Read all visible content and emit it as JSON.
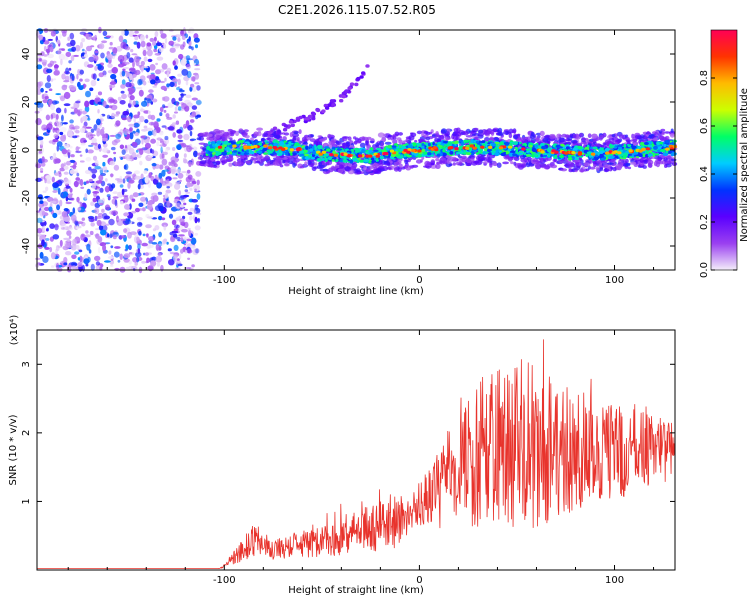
{
  "page": {
    "title": "C2E1.2026.115.07.52.R05"
  },
  "chart_data": [
    {
      "type": "heatmap",
      "name": "spectrogram",
      "xlabel": "Height of straight line (km)",
      "ylabel": "Frequency (Hz)",
      "xlim": [
        -196,
        131
      ],
      "ylim": [
        -50,
        50
      ],
      "xticks": [
        -100,
        0,
        100
      ],
      "xtick_labels": [
        "-100",
        "0",
        "100"
      ],
      "yticks": [
        -40,
        -20,
        0,
        20,
        40
      ],
      "ytick_labels": [
        "-40",
        "-20",
        "0",
        "20",
        "40"
      ],
      "noise_region_x": [
        -196,
        -113
      ],
      "signal_onset_x": -113,
      "signal_center_hz": 0,
      "signal_halfwidth_hz": 5,
      "harmonic_trace": {
        "x": [
          -75,
          -55,
          -40,
          -25
        ],
        "y": [
          8,
          14,
          22,
          35
        ]
      },
      "colorbar": {
        "label": "Normalized spectral amplitude",
        "range": [
          0,
          1
        ],
        "ticks": [
          0.0,
          0.2,
          0.4,
          0.6,
          0.8
        ],
        "tick_labels": [
          "0.0",
          "0.2",
          "0.4",
          "0.6",
          "0.8"
        ],
        "colors": [
          "#f4eefa",
          "#9a40f0",
          "#5a00ff",
          "#0033ff",
          "#00ccff",
          "#00ff66",
          "#ccff00",
          "#ffbb00",
          "#ff3300",
          "#ff0055"
        ]
      }
    },
    {
      "type": "line",
      "name": "snr",
      "xlabel": "Height of straight line (km)",
      "ylabel": "SNR (10 * v/v)",
      "y_multiplier": "(x10⁴)",
      "xlim": [
        -196,
        131
      ],
      "ylim": [
        0,
        3.5
      ],
      "xticks": [
        -100,
        0,
        100
      ],
      "xtick_labels": [
        "-100",
        "0",
        "100"
      ],
      "yticks": [
        1,
        2,
        3
      ],
      "ytick_labels": [
        "1",
        "2",
        "3"
      ],
      "color": "#e8332c",
      "envelope": {
        "x": [
          -196,
          -103,
          -100,
          -92,
          -85,
          -75,
          -60,
          -45,
          -30,
          -15,
          -5,
          0,
          10,
          20,
          30,
          40,
          50,
          60,
          70,
          80,
          90,
          100,
          110,
          120,
          131
        ],
        "mean": [
          0.02,
          0.02,
          0.05,
          0.25,
          0.45,
          0.3,
          0.38,
          0.45,
          0.55,
          0.65,
          0.85,
          0.95,
          1.2,
          1.6,
          1.7,
          1.8,
          1.85,
          1.8,
          1.75,
          1.75,
          1.7,
          1.7,
          1.75,
          1.75,
          1.75
        ],
        "amp": [
          0.0,
          0.0,
          0.02,
          0.15,
          0.25,
          0.15,
          0.2,
          0.25,
          0.35,
          0.4,
          0.3,
          0.35,
          0.6,
          0.9,
          1.1,
          1.2,
          1.3,
          1.2,
          1.1,
          0.9,
          0.8,
          0.7,
          0.6,
          0.5,
          0.45
        ]
      }
    }
  ]
}
